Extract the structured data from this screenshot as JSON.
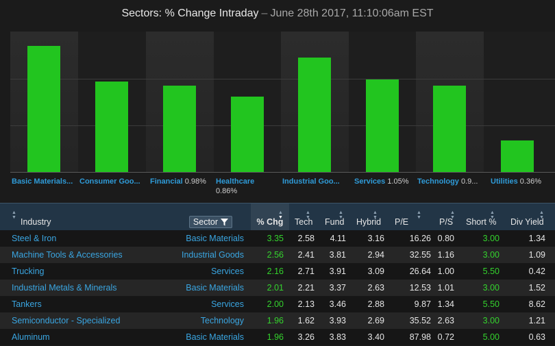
{
  "title": {
    "main": "Sectors: % Change Intraday",
    "separator": "–",
    "timestamp": "June 28th 2017, 11:10:06am EST"
  },
  "colors": {
    "bar": "#22c51f",
    "link": "#3aa6e2",
    "positive": "#34d32d",
    "header_bg": "#223546"
  },
  "chart_data": {
    "type": "bar",
    "categories": [
      "Basic Materials",
      "Consumer Goods",
      "Financial",
      "Healthcare",
      "Industrial Goods",
      "Services",
      "Technology",
      "Utilities"
    ],
    "values": [
      1.44,
      1.03,
      0.98,
      0.86,
      1.3,
      1.05,
      0.98,
      0.36
    ],
    "title": "Sectors: % Change Intraday",
    "grid": true
  },
  "sectors": [
    {
      "name": "Basic Materials...",
      "pct": ""
    },
    {
      "name": "Consumer Goo...",
      "pct": ""
    },
    {
      "name": "Financial",
      "pct": "0.98%"
    },
    {
      "name": "Healthcare",
      "pct": "0.86%"
    },
    {
      "name": "Industrial Goo...",
      "pct": ""
    },
    {
      "name": "Services",
      "pct": "1.05%"
    },
    {
      "name": "Technology",
      "pct": "0.9..."
    },
    {
      "name": "Utilities",
      "pct": "0.36%"
    }
  ],
  "table": {
    "headers": {
      "industry": "Industry",
      "sector": "Sector",
      "pct_chg": "% Chg",
      "tech": "Tech",
      "fund": "Fund",
      "hybrid": "Hybrid",
      "pe": "P/E",
      "ps": "P/S",
      "short": "Short %",
      "div": "Div Yield"
    },
    "rows": [
      {
        "industry": "Steel & Iron",
        "sector": "Basic Materials",
        "pct": "3.35",
        "tech": "2.58",
        "fund": "4.11",
        "hybrid": "3.16",
        "pe": "16.26",
        "ps": "0.80",
        "short": "3.00",
        "div": "1.34"
      },
      {
        "industry": "Machine Tools & Accessories",
        "sector": "Industrial Goods",
        "pct": "2.56",
        "tech": "2.41",
        "fund": "3.81",
        "hybrid": "2.94",
        "pe": "32.55",
        "ps": "1.16",
        "short": "3.00",
        "div": "1.09"
      },
      {
        "industry": "Trucking",
        "sector": "Services",
        "pct": "2.16",
        "tech": "2.71",
        "fund": "3.91",
        "hybrid": "3.09",
        "pe": "26.64",
        "ps": "1.00",
        "short": "5.50",
        "div": "0.42"
      },
      {
        "industry": "Industrial Metals & Minerals",
        "sector": "Basic Materials",
        "pct": "2.01",
        "tech": "2.21",
        "fund": "3.37",
        "hybrid": "2.63",
        "pe": "12.53",
        "ps": "1.01",
        "short": "3.00",
        "div": "1.52"
      },
      {
        "industry": "Tankers",
        "sector": "Services",
        "pct": "2.00",
        "tech": "2.13",
        "fund": "3.46",
        "hybrid": "2.88",
        "pe": "9.87",
        "ps": "1.34",
        "short": "5.50",
        "div": "8.62"
      },
      {
        "industry": "Semiconductor - Specialized",
        "sector": "Technology",
        "pct": "1.96",
        "tech": "1.62",
        "fund": "3.93",
        "hybrid": "2.69",
        "pe": "35.52",
        "ps": "2.63",
        "short": "3.00",
        "div": "1.21"
      },
      {
        "industry": "Aluminum",
        "sector": "Basic Materials",
        "pct": "1.96",
        "tech": "3.26",
        "fund": "3.83",
        "hybrid": "3.40",
        "pe": "87.98",
        "ps": "0.72",
        "short": "5.00",
        "div": "0.63"
      }
    ]
  }
}
